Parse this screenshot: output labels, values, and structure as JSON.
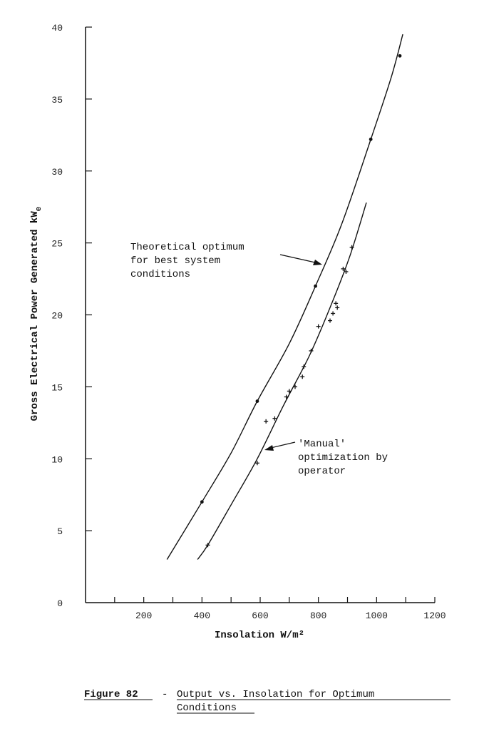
{
  "chart_data": {
    "type": "line",
    "xlabel": "Insolation W/m²",
    "ylabel": "Gross Electrical Power Generated kW",
    "ylabel_subscript": "e",
    "xlim": [
      0,
      1200
    ],
    "ylim": [
      0,
      40
    ],
    "x_ticks": [
      200,
      400,
      600,
      800,
      1000,
      1200
    ],
    "y_ticks": [
      0,
      5,
      10,
      15,
      20,
      25,
      30,
      35,
      40
    ],
    "series": [
      {
        "role": "theoretical",
        "curve": [
          [
            280,
            3
          ],
          [
            400,
            7
          ],
          [
            500,
            10.4
          ],
          [
            590,
            14
          ],
          [
            700,
            18
          ],
          [
            790,
            22
          ],
          [
            880,
            26.3
          ],
          [
            980,
            32.2
          ],
          [
            1050,
            36.5
          ],
          [
            1090,
            39.5
          ]
        ],
        "points": [
          [
            400,
            7
          ],
          [
            590,
            14
          ],
          [
            790,
            22
          ],
          [
            980,
            32.2
          ],
          [
            1080,
            38
          ]
        ]
      },
      {
        "role": "manual",
        "curve": [
          [
            385,
            3
          ],
          [
            420,
            4
          ],
          [
            500,
            6.8
          ],
          [
            590,
            10
          ],
          [
            680,
            13.7
          ],
          [
            770,
            17.2
          ],
          [
            850,
            21
          ],
          [
            910,
            24.2
          ],
          [
            965,
            27.8
          ]
        ],
        "points": [
          [
            420,
            4
          ],
          [
            590,
            9.7
          ],
          [
            620,
            12.6
          ],
          [
            650,
            12.8
          ],
          [
            690,
            14.3
          ],
          [
            700,
            14.7
          ],
          [
            720,
            15
          ],
          [
            745,
            15.7
          ],
          [
            750,
            16.4
          ],
          [
            775,
            17.5
          ],
          [
            800,
            19.2
          ],
          [
            840,
            19.6
          ],
          [
            850,
            20.1
          ],
          [
            860,
            20.8
          ],
          [
            865,
            20.5
          ],
          [
            885,
            23.2
          ],
          [
            895,
            23
          ],
          [
            915,
            24.7
          ]
        ]
      }
    ],
    "annotations": [
      {
        "id": "theoretical",
        "lines": [
          "Theoretical optimum",
          "for best system",
          "conditions"
        ]
      },
      {
        "id": "manual",
        "lines": [
          "'Manual'",
          "optimization by",
          "operator"
        ]
      }
    ]
  },
  "caption": {
    "label": "Figure 82",
    "dash": "-",
    "title_line1": "Output vs. Insolation for Optimum",
    "title_line2": "Conditions"
  }
}
